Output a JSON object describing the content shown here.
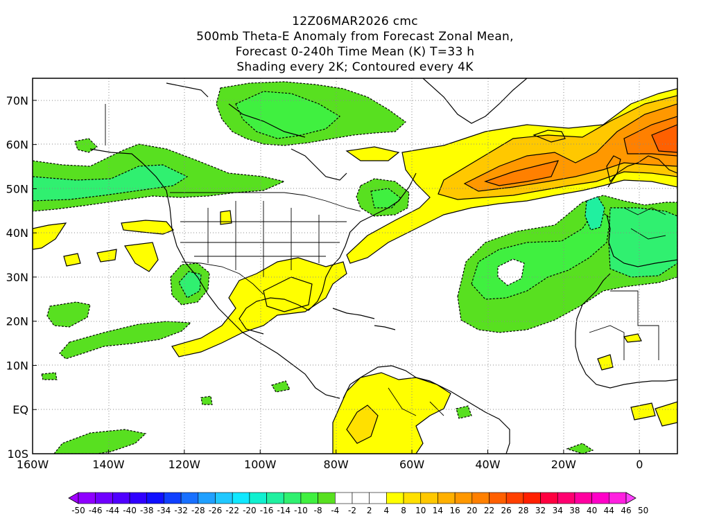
{
  "header": {
    "lines": [
      "12Z06MAR2026 cmc",
      "500mb Theta-E Anomaly from Forecast Zonal Mean,",
      "Forecast 0-240h Time Mean (K) T=33 h",
      "Shading every 2K; Contoured every 4K"
    ]
  },
  "map": {
    "lon_range": [
      -160,
      10
    ],
    "lat_range": [
      -10,
      75
    ],
    "x_ticks": [
      {
        "lon": -160,
        "label": "160W"
      },
      {
        "lon": -140,
        "label": "140W"
      },
      {
        "lon": -120,
        "label": "120W"
      },
      {
        "lon": -100,
        "label": "100W"
      },
      {
        "lon": -80,
        "label": "80W"
      },
      {
        "lon": -60,
        "label": "60W"
      },
      {
        "lon": -40,
        "label": "40W"
      },
      {
        "lon": -20,
        "label": "20W"
      },
      {
        "lon": 0,
        "label": "0"
      }
    ],
    "y_ticks": [
      {
        "lat": 70,
        "label": "70N"
      },
      {
        "lat": 60,
        "label": "60N"
      },
      {
        "lat": 50,
        "label": "50N"
      },
      {
        "lat": 40,
        "label": "40N"
      },
      {
        "lat": 30,
        "label": "30N"
      },
      {
        "lat": 20,
        "label": "20N"
      },
      {
        "lat": 10,
        "label": "10N"
      },
      {
        "lat": 0,
        "label": "EQ"
      },
      {
        "lat": -10,
        "label": "10S"
      }
    ]
  },
  "colorbar": {
    "labels": [
      "-50",
      "-46",
      "-44",
      "-40",
      "-38",
      "-34",
      "-32",
      "-28",
      "-26",
      "-22",
      "-20",
      "-16",
      "-14",
      "-10",
      "-8",
      "-4",
      "-2",
      "2",
      "4",
      "8",
      "10",
      "14",
      "16",
      "20",
      "22",
      "26",
      "28",
      "32",
      "34",
      "38",
      "40",
      "44",
      "46",
      "50"
    ],
    "colors": [
      "#8f00ff",
      "#7000ff",
      "#5000ff",
      "#3000ff",
      "#1010ff",
      "#1040ff",
      "#1870ff",
      "#20a0ff",
      "#20c8ff",
      "#10e8ff",
      "#10f0d0",
      "#20f0a0",
      "#30f070",
      "#40f040",
      "#58e020",
      "#ffffff",
      "#ffffff",
      "#ffffff",
      "#ffff00",
      "#ffe000",
      "#ffc800",
      "#ffb000",
      "#ff9800",
      "#ff8000",
      "#ff6000",
      "#ff4000",
      "#ff2000",
      "#ff0040",
      "#ff0070",
      "#ff00a0",
      "#ff00c8",
      "#ff20e0"
    ]
  }
}
